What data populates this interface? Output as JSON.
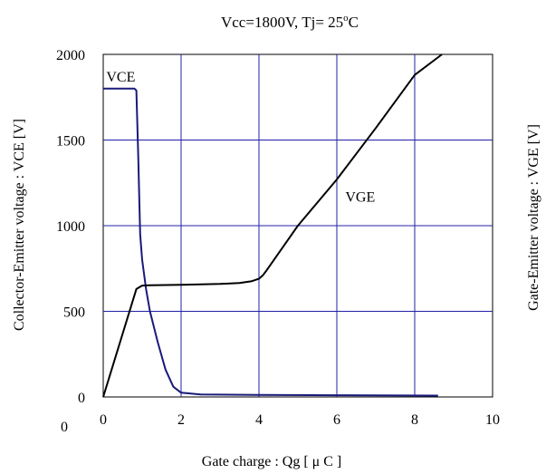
{
  "chart_data": {
    "type": "line",
    "title": "Vcc=1800V, Tj= 25°C",
    "title_main": "Vcc=1800V, Tj= 25",
    "title_superscript": "o",
    "title_suffix": "C",
    "xlabel": "Gate charge  :  Qg  [  μ C ]",
    "ylabel": "Collector-Emitter voltage : VCE [V]",
    "y2label": "Gate-Emitter voltage : VGE [V]",
    "xlim": [
      0,
      10
    ],
    "ylim": [
      0,
      2000
    ],
    "x_ticks": [
      "0",
      "2",
      "4",
      "6",
      "8",
      "10"
    ],
    "y_ticks": [
      "0",
      "500",
      "1000",
      "1500",
      "2000"
    ],
    "y2_ticks": [
      "0"
    ],
    "grid": true,
    "grid_color": "#2020a8",
    "series": [
      {
        "name": "VCE",
        "color": "#1a1a7a",
        "x": [
          0,
          0.8,
          0.85,
          0.9,
          0.95,
          1.0,
          1.1,
          1.2,
          1.4,
          1.6,
          1.8,
          2.0,
          2.5,
          4,
          6,
          8.6
        ],
        "y": [
          1800,
          1800,
          1790,
          1400,
          950,
          800,
          630,
          500,
          320,
          160,
          60,
          25,
          15,
          12,
          10,
          8
        ]
      },
      {
        "name": "VGE",
        "color": "#000000",
        "x": [
          0,
          0.85,
          1.0,
          1.2,
          2,
          3,
          3.5,
          3.8,
          4.0,
          4.1,
          4.2,
          5,
          6,
          7,
          8,
          8.7
        ],
        "y": [
          0,
          630,
          650,
          652,
          655,
          660,
          665,
          675,
          690,
          710,
          740,
          1000,
          1270,
          1570,
          1880,
          2000
        ]
      }
    ],
    "annotations": [
      {
        "text": "VCE",
        "x": 0.45,
        "y": 1840
      },
      {
        "text": "VGE",
        "x": 6.6,
        "y": 1140
      }
    ]
  }
}
